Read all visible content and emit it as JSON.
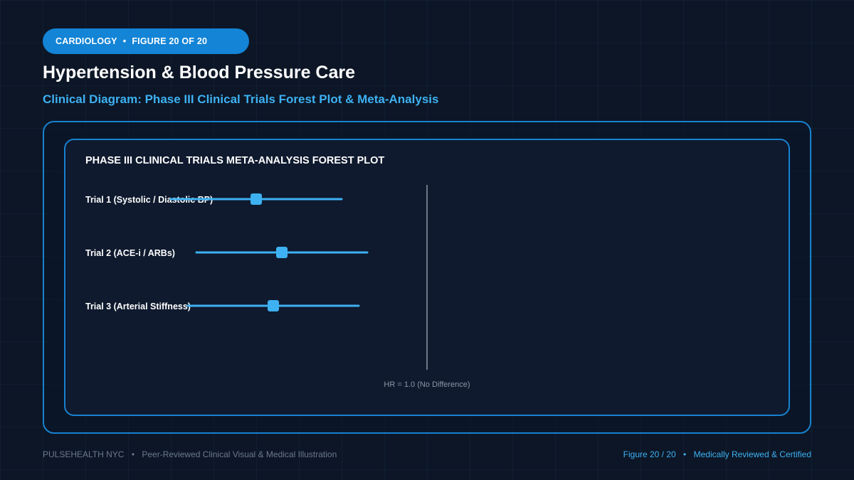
{
  "header": {
    "specialty": "CARDIOLOGY",
    "figure_label": "FIGURE 20 OF 20",
    "title": "Hypertension & Blood Pressure Care",
    "subtitle": "Clinical Diagram: Phase III Clinical Trials Forest Plot & Meta-Analysis"
  },
  "footer": {
    "brand": "PULSEHEALTH NYC",
    "tagline": "Peer-Reviewed Clinical Visual & Medical Illustration",
    "figure_counter": "Figure 20 / 20",
    "certification": "Medically Reviewed & Certified"
  },
  "colors": {
    "accent": "#3eb1f2",
    "marker": "#3eb1f2",
    "border": "#1782cf",
    "reference_line": "#8a96a6"
  },
  "chart_data": {
    "type": "forest",
    "title": "PHASE III CLINICAL TRIALS META-ANALYSIS FOREST PLOT",
    "reference": {
      "value": 1.0,
      "label": "HR = 1.0 (No Difference)"
    },
    "rows": [
      {
        "label": "Trial 1 (Systolic / Diastolic BP)",
        "estimate": 0.8,
        "ci_low": 0.7,
        "ci_high": 0.9
      },
      {
        "label": "Trial 2 (ACE-i / ARBs)",
        "estimate": 0.83,
        "ci_low": 0.73,
        "ci_high": 0.93
      },
      {
        "label": "Trial 3 (Arterial Stiffness)",
        "estimate": 0.82,
        "ci_low": 0.72,
        "ci_high": 0.92
      }
    ]
  }
}
